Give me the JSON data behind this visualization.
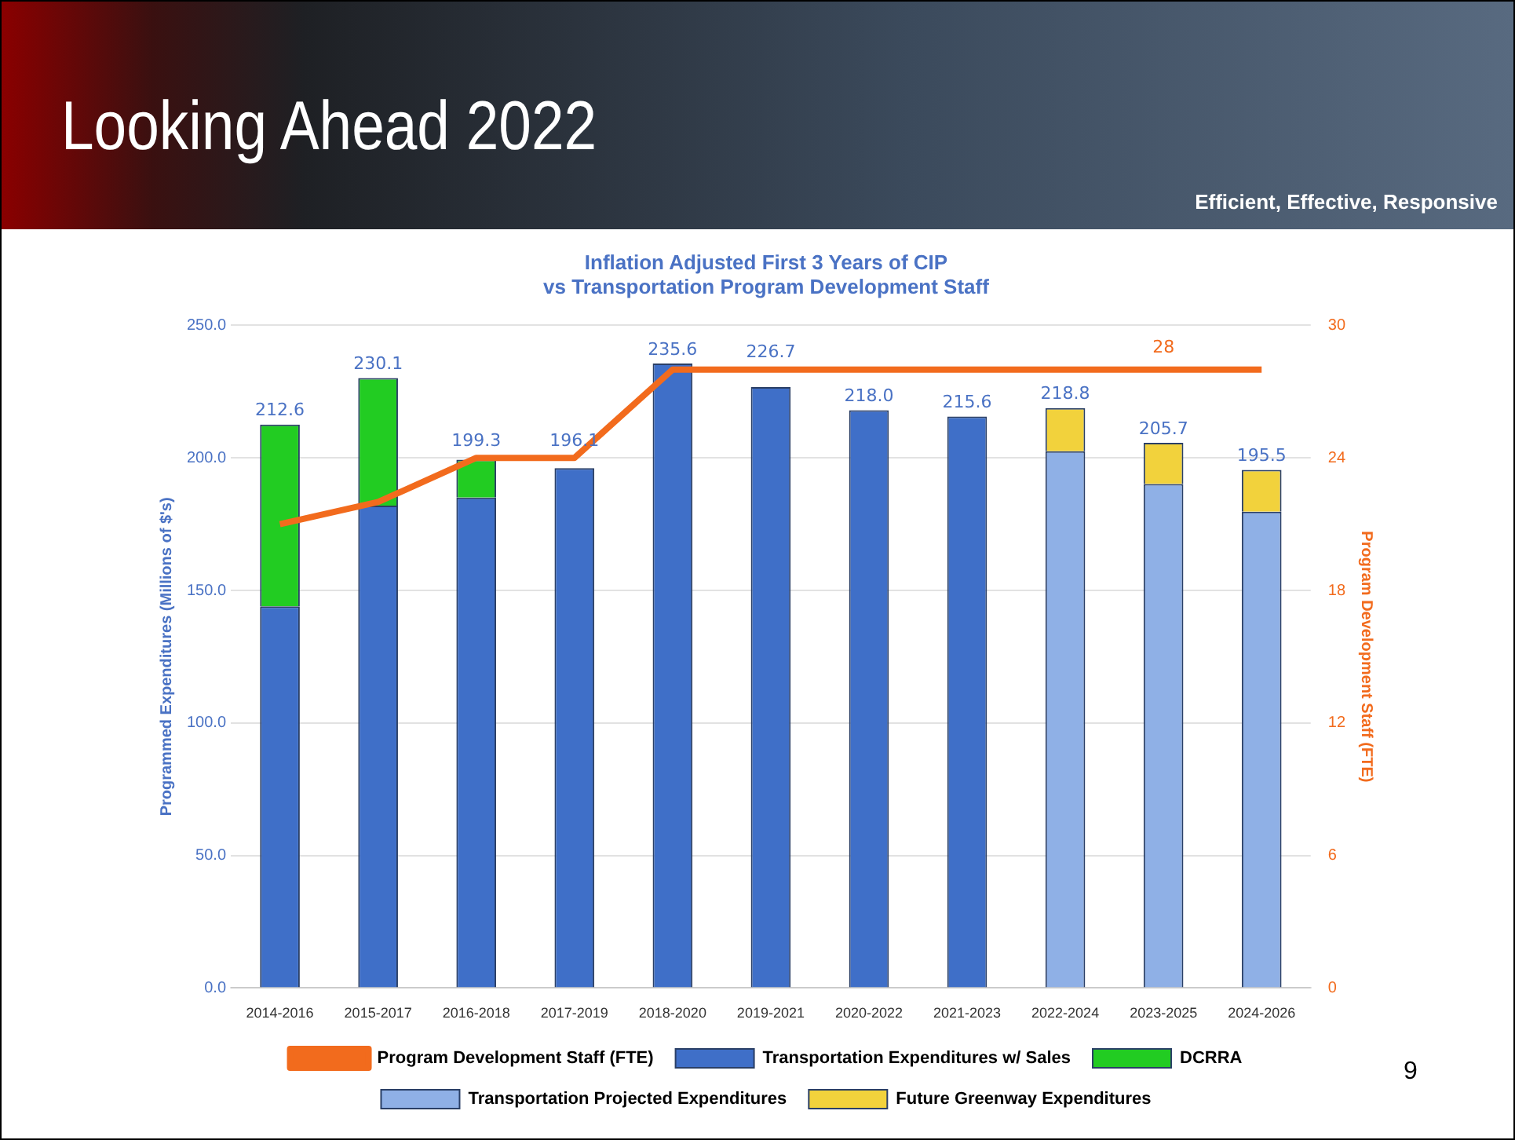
{
  "chart_data": {
    "type": "bar",
    "title": "Inflation Adjusted First 3 Years of CIP\nvs Transportation Program Development Staff",
    "ylabel": "Programmed Expenditures (Millions of $'s)",
    "y2label": "Program Development Staff (FTE)",
    "annotations": [
      "Looking Ahead 2022",
      "Efficient, Effective, Responsive",
      "9"
    ],
    "categories": [
      "2014-2016",
      "2015-2017",
      "2016-2018",
      "2017-2019",
      "2018-2020",
      "2019-2021",
      "2020-2022",
      "2021-2023",
      "2022-2024",
      "2023-2025",
      "2024-2026"
    ],
    "stacked": true,
    "series": [
      {
        "name": "Transportation Expenditures w/ Sales",
        "color": "#3f6fc8",
        "values": [
          144,
          182,
          185,
          196.1,
          235.6,
          226.7,
          218.0,
          215.6,
          null,
          null,
          null
        ]
      },
      {
        "name": "DCRRA",
        "color": "#22cc22",
        "values": [
          68.6,
          48.1,
          14.3,
          null,
          null,
          null,
          null,
          null,
          null,
          null,
          null
        ]
      },
      {
        "name": "Transportation Projected Expenditures",
        "color": "#8fb0e6",
        "values": [
          null,
          null,
          null,
          null,
          null,
          null,
          null,
          null,
          202.5,
          190.1,
          179.7
        ]
      },
      {
        "name": "Future Greenway Expenditures",
        "color": "#f2d23c",
        "values": [
          null,
          null,
          null,
          null,
          null,
          null,
          null,
          null,
          16.3,
          15.6,
          15.8
        ]
      },
      {
        "name": "Program Development Staff (FTE)",
        "type": "line",
        "axis": "y2",
        "color": "#f26b1d",
        "values": [
          21,
          22,
          24,
          24,
          28,
          28,
          28,
          28,
          28,
          28,
          28
        ],
        "value_labels": [
          null,
          null,
          null,
          null,
          null,
          null,
          null,
          null,
          null,
          "28",
          null
        ]
      }
    ],
    "totals": [
      "212.6",
      "230.1",
      "199.3",
      "196.1",
      "235.6",
      "226.7",
      "218.0",
      "215.6",
      "218.8",
      "205.7",
      "195.5"
    ],
    "ylim": [
      0,
      250
    ],
    "yticks": [
      {
        "value": 0,
        "label": "0.0"
      },
      {
        "value": 50,
        "label": "50.0"
      },
      {
        "value": 100,
        "label": "100.0"
      },
      {
        "value": 150,
        "label": "150.0"
      },
      {
        "value": 200,
        "label": "200.0"
      },
      {
        "value": 250,
        "label": "250.0"
      }
    ],
    "y2lim": [
      0,
      30
    ],
    "y2ticks": [
      0,
      6,
      12,
      18,
      24,
      30
    ],
    "grid": "y",
    "legend": "bottom",
    "marker": "none",
    "line_style": "solid"
  }
}
